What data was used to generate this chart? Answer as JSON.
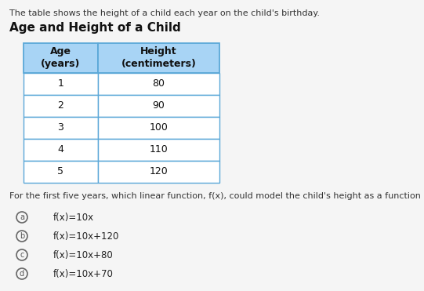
{
  "intro_text": "The table shows the height of a child each year on the child's birthday.",
  "title": "Age and Height of a Child",
  "col_headers": [
    "Age\n(years)",
    "Height\n(centimeters)"
  ],
  "table_data": [
    [
      "1",
      "80"
    ],
    [
      "2",
      "90"
    ],
    [
      "3",
      "100"
    ],
    [
      "4",
      "110"
    ],
    [
      "5",
      "120"
    ]
  ],
  "question_text": "For the first five years, which linear function, f(x), could model the child's height as a function of their age, x?",
  "choices": [
    [
      "a",
      "f(x)=10x"
    ],
    [
      "b",
      "f(x)=10x+120"
    ],
    [
      "c",
      "f(x)=10x+80"
    ],
    [
      "d",
      "f(x)=10x+70"
    ]
  ],
  "header_bg_color": "#a8d4f5",
  "cell_bg_color": "#ffffff",
  "table_border_color": "#5ba8d8",
  "bg_color": "#f5f5f5",
  "title_fontsize": 11,
  "intro_fontsize": 8,
  "question_fontsize": 8,
  "choice_fontsize": 8.5,
  "table_fontsize": 9
}
